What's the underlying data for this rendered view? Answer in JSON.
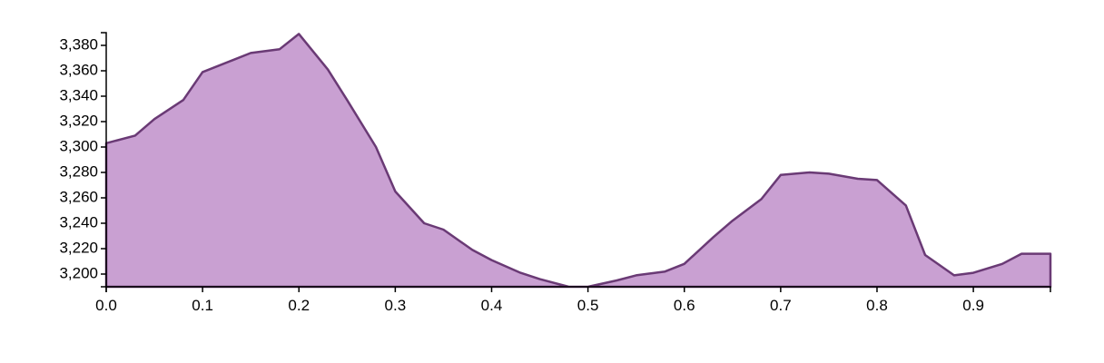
{
  "chart_data": {
    "type": "area",
    "title": "",
    "xlabel": "",
    "ylabel": "",
    "xlim": [
      0,
      0.98
    ],
    "ylim": [
      3190,
      3390
    ],
    "x_ticks": [
      0.0,
      0.1,
      0.2,
      0.3,
      0.4,
      0.5,
      0.6,
      0.7,
      0.8,
      0.9
    ],
    "x_tick_labels": [
      "0.0",
      "0.1",
      "0.2",
      "0.3",
      "0.4",
      "0.5",
      "0.6",
      "0.7",
      "0.8",
      "0.9"
    ],
    "y_ticks": [
      3200,
      3220,
      3240,
      3260,
      3280,
      3300,
      3320,
      3340,
      3360,
      3380
    ],
    "y_tick_labels": [
      "3,200",
      "3,220",
      "3,240",
      "3,260",
      "3,280",
      "3,300",
      "3,320",
      "3,340",
      "3,360",
      "3,380"
    ],
    "grid": false,
    "fill_color": "#c9a0d2",
    "line_color": "#6a3a75",
    "x": [
      0.0,
      0.03,
      0.05,
      0.08,
      0.1,
      0.13,
      0.15,
      0.18,
      0.2,
      0.23,
      0.25,
      0.28,
      0.3,
      0.33,
      0.35,
      0.38,
      0.4,
      0.43,
      0.45,
      0.48,
      0.5,
      0.53,
      0.55,
      0.58,
      0.6,
      0.63,
      0.65,
      0.68,
      0.7,
      0.73,
      0.75,
      0.78,
      0.8,
      0.83,
      0.85,
      0.88,
      0.9,
      0.93,
      0.95,
      0.98
    ],
    "values": [
      3303,
      3309,
      3322,
      3337,
      3359,
      3368,
      3374,
      3377,
      3389,
      3361,
      3337,
      3300,
      3265,
      3240,
      3235,
      3219,
      3211,
      3201,
      3196,
      3190,
      3190,
      3195,
      3199,
      3202,
      3208,
      3229,
      3242,
      3259,
      3278,
      3280,
      3279,
      3275,
      3274,
      3254,
      3215,
      3199,
      3201,
      3208,
      3216,
      3216
    ]
  }
}
